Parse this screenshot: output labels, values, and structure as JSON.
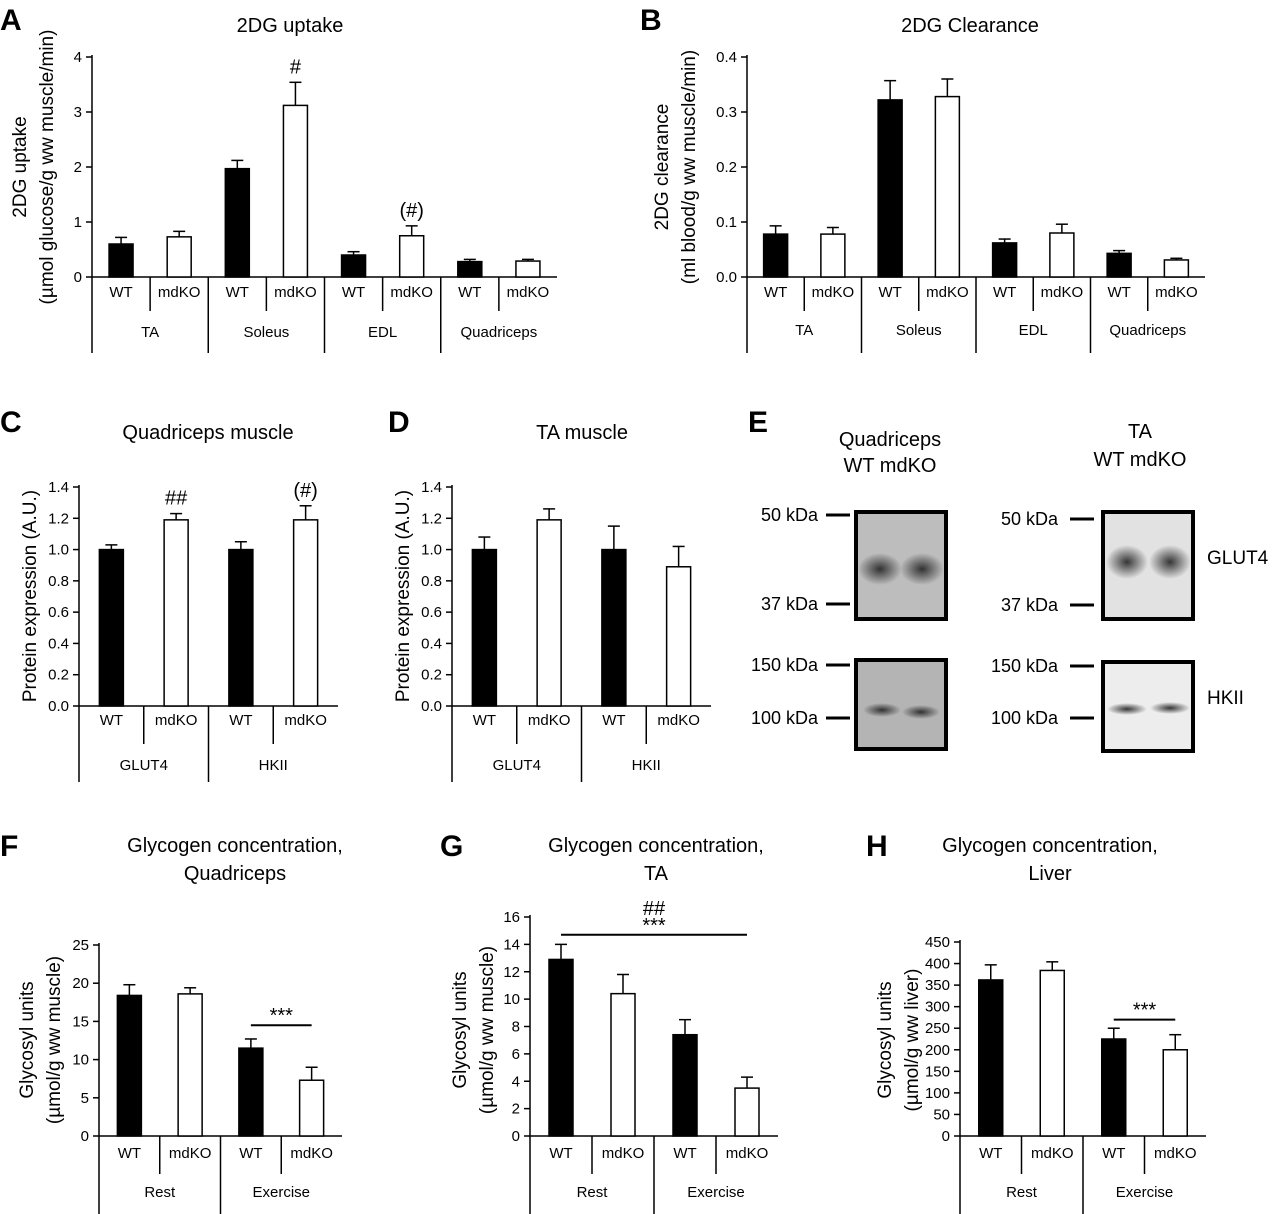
{
  "colors": {
    "wt_bar": "#000000",
    "mdko_bar": "#ffffff",
    "axis": "#000000"
  },
  "group_labels": [
    "WT",
    "mdKO"
  ],
  "chart_data": [
    {
      "id": "A",
      "type": "bar",
      "title": "2DG uptake",
      "ylabel_lines": [
        "2DG uptake",
        "(µmol glucose/g ww muscle/min)"
      ],
      "ylim": [
        0,
        4
      ],
      "yticks": [
        "0",
        "1",
        "2",
        "3",
        "4"
      ],
      "ytick_values": [
        0,
        1,
        2,
        3,
        4
      ],
      "categories": [
        "TA",
        "Soleus",
        "EDL",
        "Quadriceps"
      ],
      "series": [
        {
          "name": "WT",
          "values": [
            0.6,
            1.97,
            0.4,
            0.28
          ],
          "errors": [
            0.12,
            0.15,
            0.06,
            0.04
          ]
        },
        {
          "name": "mdKO",
          "values": [
            0.73,
            3.12,
            0.75,
            0.29
          ],
          "errors": [
            0.1,
            0.42,
            0.18,
            0.03
          ]
        }
      ],
      "annotations": [
        {
          "text": "#",
          "category": 1,
          "series": 1
        },
        {
          "text": "(#)",
          "category": 2,
          "series": 1
        }
      ]
    },
    {
      "id": "B",
      "type": "bar",
      "title": "2DG Clearance",
      "ylabel_lines": [
        "2DG clearance",
        "(ml blood/g ww muscle/min)"
      ],
      "ylim": [
        0,
        0.4
      ],
      "yticks": [
        "0.0",
        "0.1",
        "0.2",
        "0.3",
        "0.4"
      ],
      "ytick_values": [
        0,
        0.1,
        0.2,
        0.3,
        0.4
      ],
      "categories": [
        "TA",
        "Soleus",
        "EDL",
        "Quadriceps"
      ],
      "series": [
        {
          "name": "WT",
          "values": [
            0.078,
            0.322,
            0.062,
            0.043
          ],
          "errors": [
            0.015,
            0.035,
            0.007,
            0.005
          ]
        },
        {
          "name": "mdKO",
          "values": [
            0.078,
            0.328,
            0.08,
            0.031
          ],
          "errors": [
            0.012,
            0.032,
            0.016,
            0.003
          ]
        }
      ],
      "annotations": []
    },
    {
      "id": "C",
      "type": "bar",
      "title": "Quadriceps muscle",
      "ylabel_lines": [
        "Protein expression (A.U.)"
      ],
      "ylim": [
        0,
        1.4
      ],
      "yticks": [
        "0.0",
        "0.2",
        "0.4",
        "0.6",
        "0.8",
        "1.0",
        "1.2",
        "1.4"
      ],
      "ytick_values": [
        0,
        0.2,
        0.4,
        0.6,
        0.8,
        1.0,
        1.2,
        1.4
      ],
      "categories": [
        "GLUT4",
        "HKII"
      ],
      "series": [
        {
          "name": "WT",
          "values": [
            1.0,
            1.0
          ],
          "errors": [
            0.03,
            0.05
          ]
        },
        {
          "name": "mdKO",
          "values": [
            1.19,
            1.19
          ],
          "errors": [
            0.04,
            0.09
          ]
        }
      ],
      "annotations": [
        {
          "text": "##",
          "category": 0,
          "series": 1
        },
        {
          "text": "(#)",
          "category": 1,
          "series": 1
        }
      ]
    },
    {
      "id": "D",
      "type": "bar",
      "title": "TA muscle",
      "ylabel_lines": [
        "Protein expression (A.U.)"
      ],
      "ylim": [
        0,
        1.4
      ],
      "yticks": [
        "0.0",
        "0.2",
        "0.4",
        "0.6",
        "0.8",
        "1.0",
        "1.2",
        "1.4"
      ],
      "ytick_values": [
        0,
        0.2,
        0.4,
        0.6,
        0.8,
        1.0,
        1.2,
        1.4
      ],
      "categories": [
        "GLUT4",
        "HKII"
      ],
      "series": [
        {
          "name": "WT",
          "values": [
            1.0,
            1.0
          ],
          "errors": [
            0.08,
            0.15
          ]
        },
        {
          "name": "mdKO",
          "values": [
            1.19,
            0.89
          ],
          "errors": [
            0.07,
            0.13
          ]
        }
      ],
      "annotations": []
    },
    {
      "id": "F",
      "type": "bar",
      "title_lines": [
        "Glycogen concentration,",
        "Quadriceps"
      ],
      "ylabel_lines": [
        "Glycosyl units",
        "(µmol/g ww muscle)"
      ],
      "ylim": [
        0,
        25
      ],
      "yticks": [
        "0",
        "5",
        "10",
        "15",
        "20",
        "25"
      ],
      "ytick_values": [
        0,
        5,
        10,
        15,
        20,
        25
      ],
      "categories": [
        "Rest",
        "Exercise"
      ],
      "series": [
        {
          "name": "WT",
          "values": [
            18.4,
            11.5
          ],
          "errors": [
            1.4,
            1.2
          ]
        },
        {
          "name": "mdKO",
          "values": [
            18.6,
            7.3
          ],
          "errors": [
            0.8,
            1.7
          ]
        }
      ],
      "brackets": [
        {
          "text": "***",
          "from": [
            1,
            0
          ],
          "to": [
            1,
            1
          ],
          "value": 14.5
        }
      ]
    },
    {
      "id": "G",
      "type": "bar",
      "title_lines": [
        "Glycogen concentration,",
        "TA"
      ],
      "ylabel_lines": [
        "Glycosyl units",
        "(µmol/g ww muscle)"
      ],
      "ylim": [
        0,
        16
      ],
      "yticks": [
        "0",
        "2",
        "4",
        "6",
        "8",
        "10",
        "12",
        "14",
        "16"
      ],
      "ytick_values": [
        0,
        2,
        4,
        6,
        8,
        10,
        12,
        14,
        16
      ],
      "categories": [
        "Rest",
        "Exercise"
      ],
      "series": [
        {
          "name": "WT",
          "values": [
            12.9,
            7.4
          ],
          "errors": [
            1.1,
            1.1
          ]
        },
        {
          "name": "mdKO",
          "values": [
            10.4,
            3.5
          ],
          "errors": [
            1.4,
            0.8
          ]
        }
      ],
      "brackets": [
        {
          "text": "***",
          "text2": "##",
          "from": [
            0,
            0
          ],
          "to": [
            1,
            1
          ],
          "value": 14.7
        }
      ]
    },
    {
      "id": "H",
      "type": "bar",
      "title_lines": [
        "Glycogen concentration,",
        "Liver"
      ],
      "ylabel_lines": [
        "Glycosyl units",
        "(µmol/g ww liver)"
      ],
      "ylim": [
        0,
        450
      ],
      "yticks": [
        "0",
        "50",
        "100",
        "150",
        "200",
        "250",
        "300",
        "350",
        "400",
        "450"
      ],
      "ytick_values": [
        0,
        50,
        100,
        150,
        200,
        250,
        300,
        350,
        400,
        450
      ],
      "categories": [
        "Rest",
        "Exercise"
      ],
      "series": [
        {
          "name": "WT",
          "values": [
            362,
            225
          ],
          "errors": [
            35,
            25
          ]
        },
        {
          "name": "mdKO",
          "values": [
            384,
            200
          ],
          "errors": [
            20,
            35
          ]
        }
      ],
      "brackets": [
        {
          "text": "***",
          "from": [
            1,
            0
          ],
          "to": [
            1,
            1
          ],
          "value": 270
        }
      ]
    }
  ],
  "blot": {
    "id": "E",
    "quad_title": [
      "Quadriceps",
      "WT mdKO"
    ],
    "ta_title": [
      "TA",
      "WT mdKO"
    ],
    "markers_upper": [
      "50 kDa",
      "37 kDa"
    ],
    "markers_lower": [
      "150 kDa",
      "100 kDa"
    ],
    "labels": [
      "GLUT4",
      "HKII"
    ]
  }
}
